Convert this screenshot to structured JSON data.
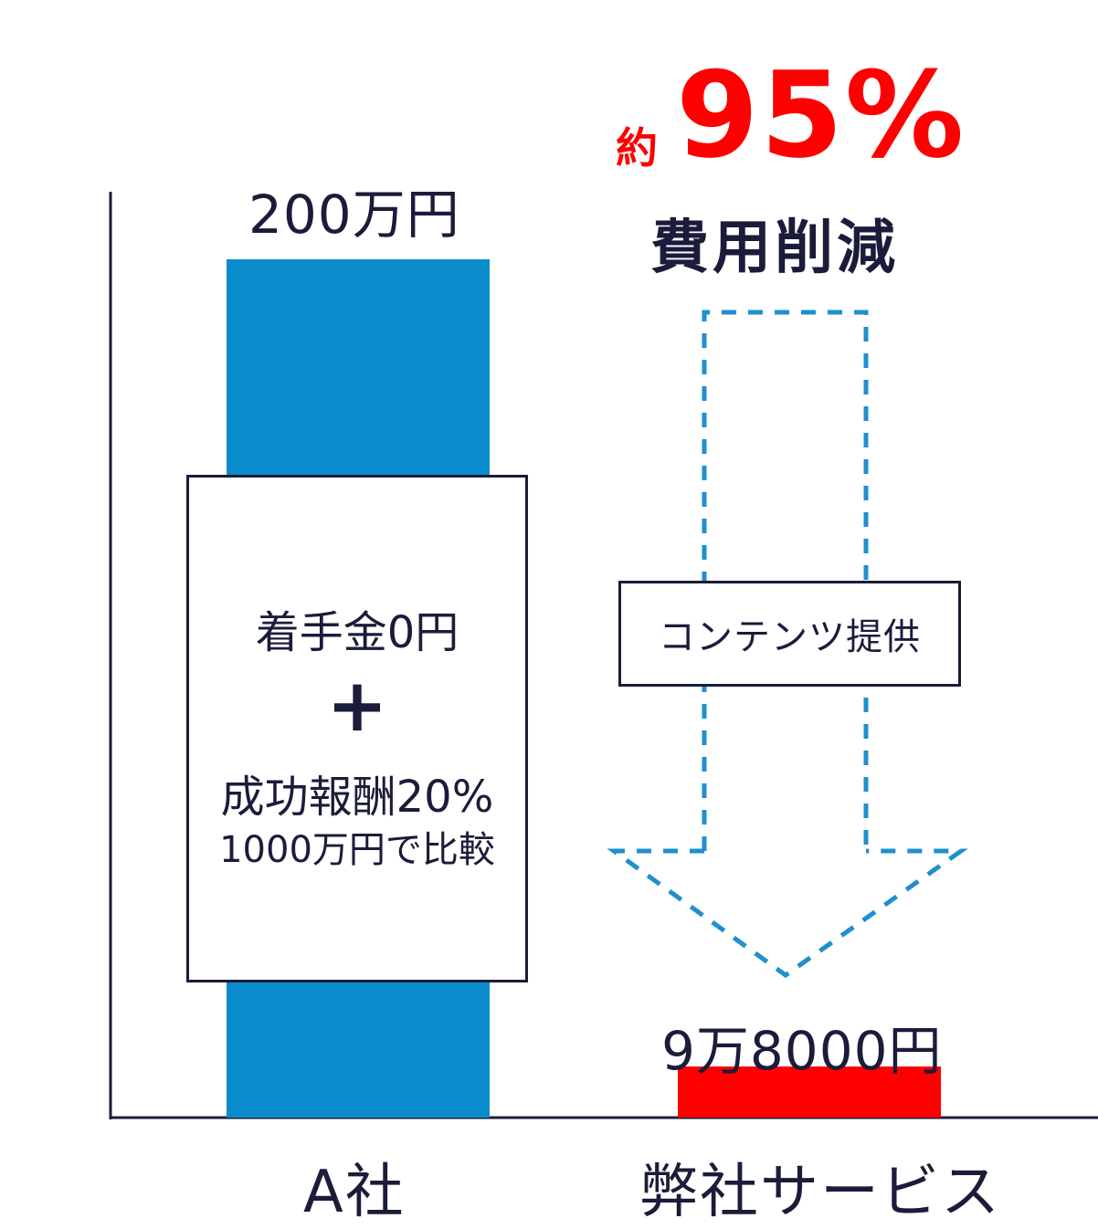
{
  "chart_data": {
    "type": "bar",
    "categories": [
      "A社",
      "弊社サービス"
    ],
    "values": [
      2000000,
      98000
    ],
    "value_labels": [
      "200万円",
      "9万8000円"
    ],
    "colors": [
      "#0a8bcc",
      "#ff0000"
    ],
    "annotations": {
      "a_company": [
        "着手金0円",
        "+",
        "成功報酬20%",
        "1000万円で比較"
      ],
      "arrow_label": "コンテンツ提供",
      "reduction_approx": "約",
      "reduction_value": "95%",
      "reduction_text": "費用削減"
    }
  }
}
